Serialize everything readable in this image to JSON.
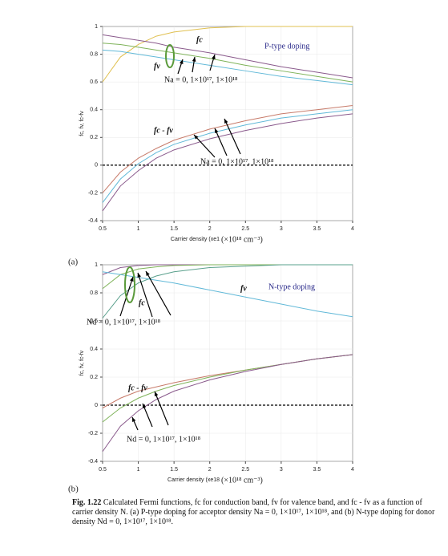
{
  "chart_data": [
    {
      "type": "line",
      "panel_label": "(a)",
      "xlabel": "Carrier density (xe1",
      "x_unit": "(×10¹⁸ cm⁻³)",
      "ylabel": "fc, fv, fc-fv",
      "x": [
        0.5,
        0.75,
        1,
        1.25,
        1.5,
        2,
        2.5,
        3,
        3.5,
        4
      ],
      "series": [
        {
          "color": "#e0c050",
          "values": [
            0.6,
            0.78,
            0.87,
            0.93,
            0.96,
            0.99,
            1,
            1,
            1,
            1
          ]
        },
        {
          "color": "#8a5a8c",
          "values": [
            0.94,
            0.92,
            0.9,
            0.88,
            0.85,
            0.81,
            0.76,
            0.71,
            0.67,
            0.63
          ]
        },
        {
          "color": "#7fb35a",
          "values": [
            0.88,
            0.87,
            0.85,
            0.83,
            0.81,
            0.77,
            0.72,
            0.68,
            0.64,
            0.6
          ]
        },
        {
          "color": "#62b9d8",
          "values": [
            0.83,
            0.82,
            0.8,
            0.78,
            0.76,
            0.72,
            0.68,
            0.64,
            0.61,
            0.58
          ]
        },
        {
          "color": "#c77b6a",
          "values": [
            -0.2,
            -0.05,
            0.05,
            0.12,
            0.18,
            0.26,
            0.32,
            0.37,
            0.4,
            0.43
          ]
        },
        {
          "color": "#62b9d8",
          "values": [
            -0.27,
            -0.1,
            0.01,
            0.09,
            0.15,
            0.23,
            0.29,
            0.34,
            0.37,
            0.4
          ]
        },
        {
          "color": "#8a5a8c",
          "values": [
            -0.33,
            -0.15,
            -0.04,
            0.05,
            0.11,
            0.19,
            0.25,
            0.3,
            0.34,
            0.37
          ]
        }
      ],
      "annotations": [
        "fc",
        "fv",
        "Na = 0, 1×10¹⁷, 1×10¹⁸",
        "P-type doping",
        "fc - fv",
        "Na = 0, 1×10¹⁷, 1×10¹⁸"
      ],
      "xlim": [
        0.5,
        4
      ],
      "ylim": [
        -0.4,
        1
      ],
      "xticks": [
        0.5,
        1,
        1.5,
        2,
        2.5,
        3,
        3.5,
        4
      ],
      "yticks": [
        -0.4,
        -0.2,
        0,
        0.2,
        0.4,
        0.6,
        0.8,
        1
      ],
      "zero_line": true
    },
    {
      "type": "line",
      "panel_label": "(b)",
      "xlabel": "Carrier density (xe18",
      "x_unit": "(×10¹⁸ cm⁻³)",
      "ylabel": "fc, fv, fc-fv",
      "x": [
        0.5,
        0.75,
        1,
        1.25,
        1.5,
        2,
        2.5,
        3,
        3.5,
        4
      ],
      "series": [
        {
          "color": "#8a5a8c",
          "values": [
            0.93,
            0.98,
            0.995,
            1,
            1,
            1,
            1,
            1,
            1,
            1
          ]
        },
        {
          "color": "#7fb35a",
          "values": [
            0.83,
            0.93,
            0.97,
            0.985,
            0.995,
            1,
            1,
            1,
            1,
            1
          ]
        },
        {
          "color": "#5aa08c",
          "values": [
            0.62,
            0.78,
            0.87,
            0.92,
            0.95,
            0.98,
            0.99,
            1,
            1,
            1
          ]
        },
        {
          "color": "#62b9d8",
          "values": [
            0.95,
            0.93,
            0.91,
            0.89,
            0.87,
            0.82,
            0.77,
            0.72,
            0.67,
            0.63
          ]
        },
        {
          "color": "#c77b6a",
          "values": [
            -0.02,
            0.05,
            0.1,
            0.13,
            0.16,
            0.21,
            0.25,
            0.29,
            0.33,
            0.36
          ]
        },
        {
          "color": "#7fb35a",
          "values": [
            -0.12,
            -0.02,
            0.05,
            0.1,
            0.14,
            0.2,
            0.25,
            0.29,
            0.33,
            0.36
          ]
        },
        {
          "color": "#8a5a8c",
          "values": [
            -0.33,
            -0.15,
            -0.04,
            0.04,
            0.1,
            0.18,
            0.24,
            0.29,
            0.33,
            0.36
          ]
        }
      ],
      "annotations": [
        "fv",
        "N-type doping",
        "fc",
        "Nd = 0, 1×10¹⁷, 1×10¹⁸",
        "fc - fv",
        "Nd = 0, 1×10¹⁷, 1×10¹⁸"
      ],
      "xlim": [
        0.5,
        4
      ],
      "ylim": [
        -0.4,
        1
      ],
      "xticks": [
        0.5,
        1,
        1.5,
        2,
        2.5,
        3,
        3.5,
        4
      ],
      "yticks": [
        -0.4,
        -0.2,
        0,
        0.2,
        0.4,
        0.6,
        0.8,
        1
      ],
      "zero_line": true
    }
  ],
  "caption": {
    "label": "Fig. 1.22",
    "text": "Calculated Fermi functions, fc for conduction band, fv for valence band, and fc - fv as a function of carrier density N. (a) P-type doping for acceptor density Na = 0, 1×10¹⁷, 1×10¹⁸, and (b) N-type doping for donor density Nd = 0, 1×10¹⁷, 1×10¹⁸."
  }
}
